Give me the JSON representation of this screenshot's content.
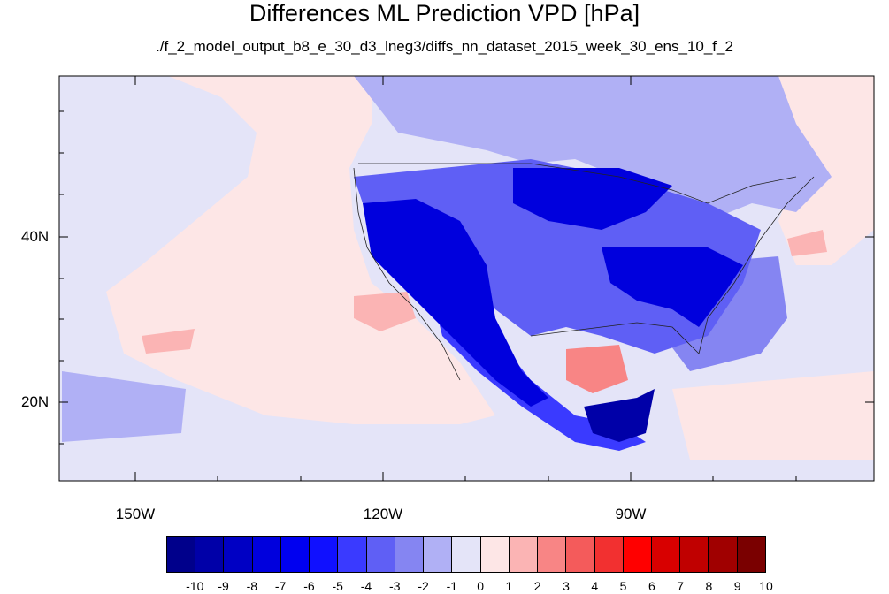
{
  "title": "Differences ML Prediction VPD [hPa]",
  "subtitle": "./f_2_model_output_b8_e_30_d3_lneg3/diffs_nn_dataset_2015_week_30_ens_10_f_2",
  "lat_labels": [
    "40N",
    "20N"
  ],
  "lon_labels": [
    "150W",
    "120W",
    "90W"
  ],
  "colorbar": {
    "labels": [
      "-10",
      "-9",
      "-8",
      "-7",
      "-6",
      "-5",
      "-4",
      "-3",
      "-2",
      "-1",
      "0",
      "1",
      "2",
      "3",
      "4",
      "5",
      "6",
      "7",
      "8",
      "9",
      "10"
    ],
    "colors": [
      "#00008b",
      "#0000a8",
      "#0000c4",
      "#0000dd",
      "#0000f0",
      "#1010ff",
      "#3a3aff",
      "#5f5ff5",
      "#8585f2",
      "#b0b0f5",
      "#e4e4f8",
      "#fde6e6",
      "#fbb4b4",
      "#f88585",
      "#f45b5b",
      "#f23030",
      "#ff0000",
      "#d80000",
      "#c00000",
      "#a00000",
      "#7a0000"
    ]
  },
  "colors": {
    "ocean_pale_blue": "#e4e4f8",
    "ocean_pale_red": "#fde6e6",
    "deep_blue": "#0000dd",
    "medium_blue": "#5f5ff5",
    "light_blue": "#b0b0f5"
  }
}
